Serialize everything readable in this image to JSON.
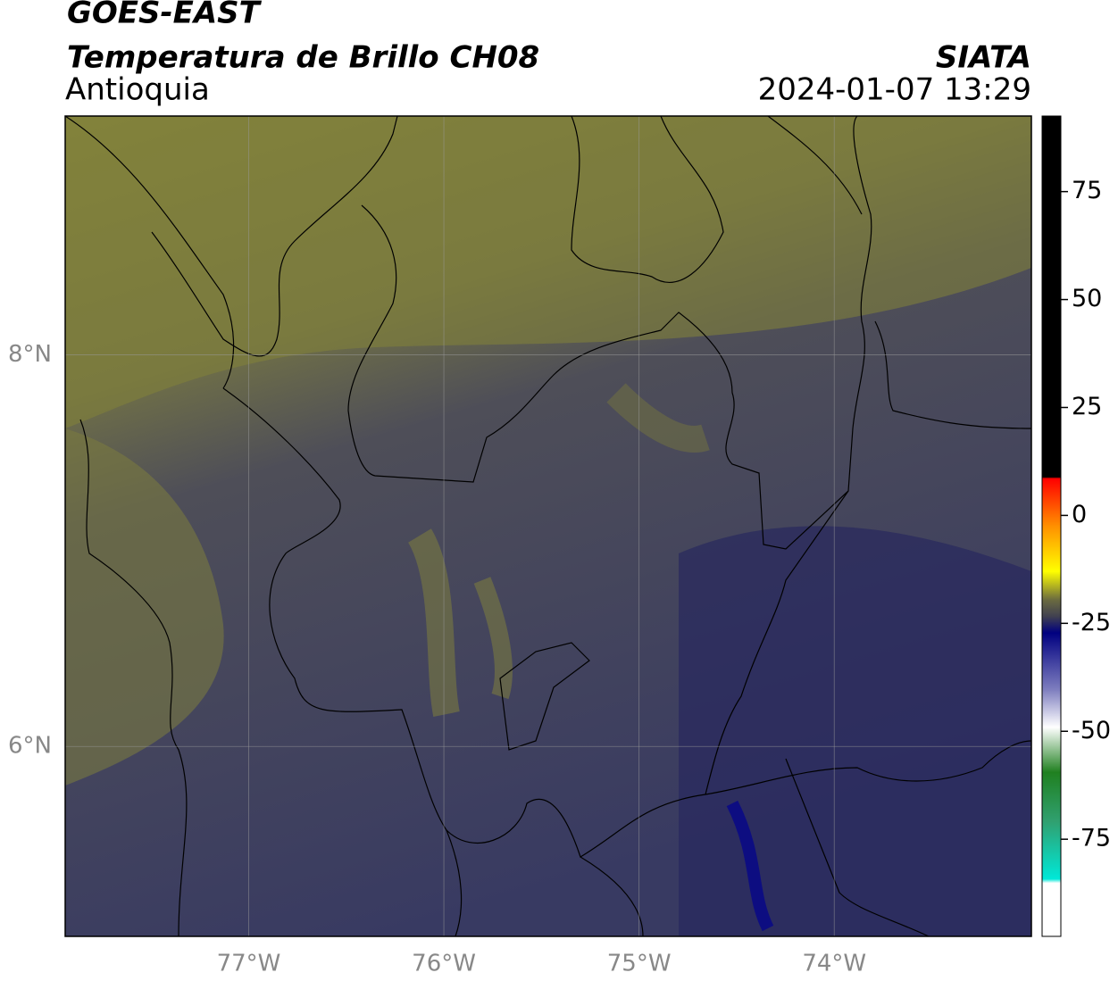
{
  "chart_data": {
    "type": "map",
    "title": "GOES-EAST",
    "subtitle": "Temperatura de Brillo CH08",
    "region": "Antioquia",
    "source": "SIATA",
    "datetime": "2024-01-07 13:29",
    "xlim": [
      -77.94,
      -72.99
    ],
    "xticks": [
      {
        "value": -77,
        "label": "77°W"
      },
      {
        "value": -76,
        "label": "76°W"
      },
      {
        "value": -75,
        "label": "75°W"
      },
      {
        "value": -74,
        "label": "74°W"
      }
    ],
    "ylim": [
      5.03,
      9.22
    ],
    "yticks": [
      {
        "value": 6,
        "label": "6°N"
      },
      {
        "value": 8,
        "label": "8°N"
      }
    ],
    "grid": true,
    "colorbar": {
      "lim": [
        -97.5,
        92.5
      ],
      "ticks": [
        75,
        50,
        25,
        0,
        -25,
        -50,
        -75
      ]
    }
  }
}
